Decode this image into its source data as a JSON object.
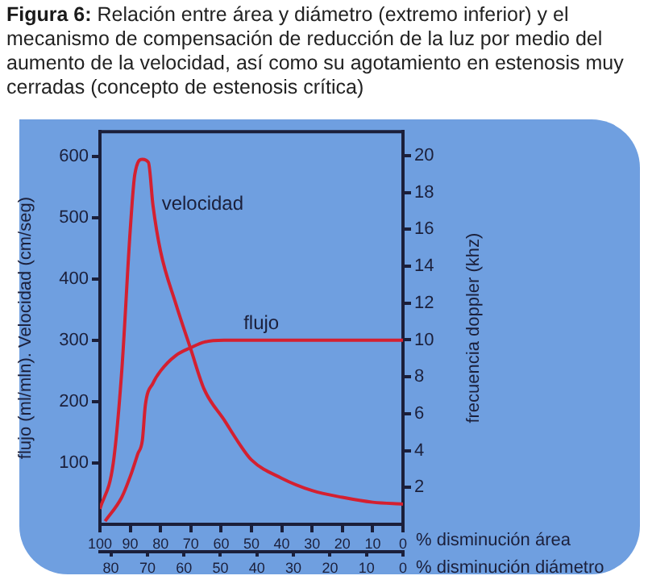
{
  "chart_data": {
    "type": "line",
    "title": "Figura 6: Relación entre área y diámetro (extremo inferior) y el mecanismo de compensación de reducción de la luz por medio del aumento de la velocidad, así como su agotamiento en estenosis muy cerradas (concepto de estenosis crítica)",
    "xlabel": "% disminución área",
    "x2label": "% disminución diámetro",
    "ylabel": "flujo (ml/mln). Velocidad (cm/seg)",
    "y2label": "frecuencia doppler (khz)",
    "xlim": [
      100,
      0
    ],
    "xticks": [
      100,
      90,
      80,
      70,
      60,
      50,
      40,
      30,
      20,
      10,
      0
    ],
    "x2lim": [
      83,
      0
    ],
    "x2ticks": [
      80,
      70,
      60,
      50,
      40,
      30,
      20,
      10,
      0
    ],
    "ylim": [
      0,
      640
    ],
    "yticks": [
      100,
      200,
      300,
      400,
      500,
      600
    ],
    "y2lim": [
      0,
      21.3
    ],
    "y2ticks": [
      2,
      4,
      6,
      8,
      10,
      12,
      14,
      16,
      18,
      20
    ],
    "grid": false,
    "legend": false,
    "series": [
      {
        "name": "velocidad",
        "color": "#d42030",
        "x": [
          100,
          95.6,
          92.8,
          90,
          88.5,
          86,
          84,
          82.5,
          80,
          75,
          70,
          65.6,
          59,
          54.5,
          50,
          40,
          30,
          20,
          10,
          0
        ],
        "values": [
          25,
          100,
          250,
          480,
          570,
          595,
          590,
          520,
          445,
          360,
          285,
          220,
          170,
          135,
          105,
          75,
          55,
          44,
          36,
          33
        ]
      },
      {
        "name": "flujo",
        "color": "#d42030",
        "x": [
          98.3,
          92.8,
          90,
          87.5,
          86,
          85,
          82.5,
          80,
          75,
          70,
          65.6,
          59,
          0
        ],
        "values": [
          5,
          44,
          78,
          115,
          137,
          195,
          230,
          250,
          275,
          288,
          297,
          300,
          300
        ]
      }
    ]
  }
}
